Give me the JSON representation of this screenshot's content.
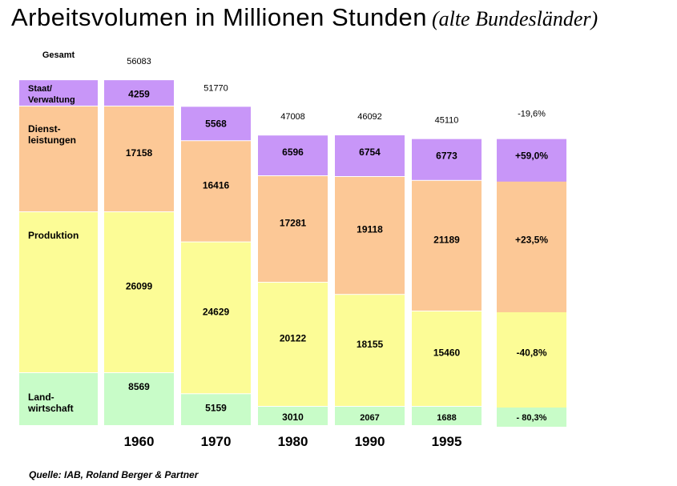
{
  "title": "Arbeitsvolumen in Millionen Stunden",
  "subtitle": "(alte Bundesländer)",
  "source": "Quelle: IAB, Roland Berger & Partner",
  "chart_data": {
    "type": "bar",
    "stacked": true,
    "total_label": "Gesamt",
    "categories": [
      "1960",
      "1970",
      "1980",
      "1990",
      "1995"
    ],
    "totals": [
      56083,
      51770,
      47008,
      46092,
      45110
    ],
    "series": [
      {
        "name": "Land-\nwirtschaft",
        "color": "#c8fcc8",
        "values": [
          8569,
          5159,
          3010,
          2067,
          1688
        ],
        "change": "- 80,3%"
      },
      {
        "name": "Produktion",
        "color": "#fcfc96",
        "values": [
          26099,
          24629,
          20122,
          18155,
          15460
        ],
        "change": "-40,8%"
      },
      {
        "name": "Dienst-\nleistungen",
        "color": "#fcc896",
        "values": [
          17158,
          16416,
          17281,
          19118,
          21189
        ],
        "change": "+23,5%"
      },
      {
        "name": "Staat/\nVerwaltung",
        "color": "#c896f8",
        "values": [
          4259,
          5568,
          6596,
          6754,
          6773
        ],
        "change": "+59,0%"
      }
    ],
    "total_change": "-19,6%"
  }
}
